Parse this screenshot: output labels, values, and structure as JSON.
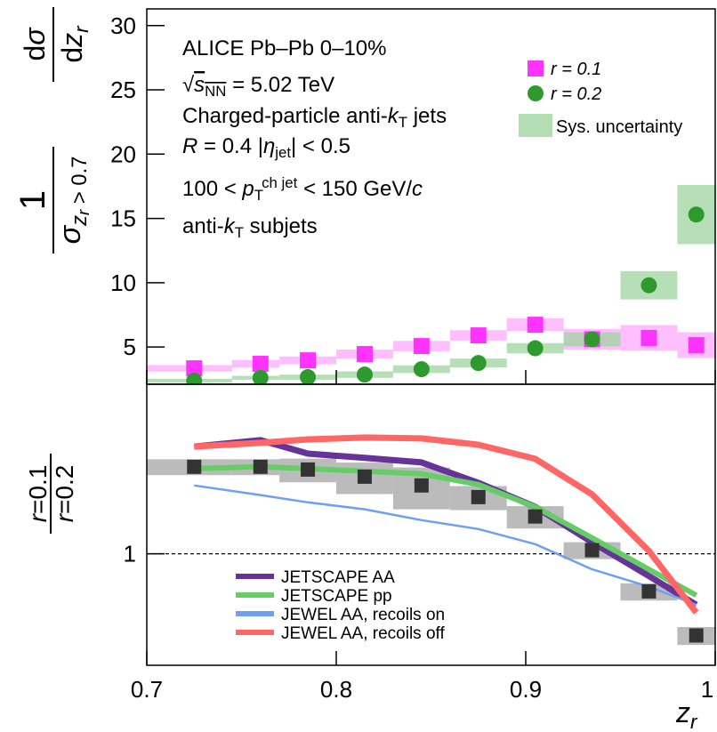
{
  "chart_data": [
    {
      "type": "scatter",
      "ylabel": {
        "num1": [
          {
            "t": "1",
            "s": ""
          }
        ],
        "den1": [
          {
            "t": "σ",
            "s": "i"
          },
          {
            "t": "z",
            "s": "sub i"
          },
          {
            "t": "r",
            "s": "ssub i"
          },
          {
            "t": " > 0.7",
            "s": "sub"
          }
        ],
        "num2": [
          {
            "t": "d",
            "s": ""
          },
          {
            "t": "σ",
            "s": "i"
          }
        ],
        "den2": [
          {
            "t": "d",
            "s": ""
          },
          {
            "t": "z",
            "s": "i"
          },
          {
            "t": "r",
            "s": "sub i"
          }
        ]
      },
      "annotations": [
        [
          {
            "t": "ALICE   Pb–Pb 0–10%",
            "s": ""
          }
        ],
        [
          {
            "t": "√",
            "s": ""
          },
          {
            "t": "s",
            "s": "i over"
          },
          {
            "t": "NN",
            "s": "sub over"
          },
          {
            "t": " = 5.02 TeV",
            "s": ""
          }
        ],
        [
          {
            "t": "Charged-particle anti-",
            "s": ""
          },
          {
            "t": "k",
            "s": "i"
          },
          {
            "t": "T",
            "s": "sub"
          },
          {
            "t": " jets",
            "s": ""
          }
        ],
        [
          {
            "t": "R",
            "s": "i"
          },
          {
            "t": " = 0.4   |",
            "s": ""
          },
          {
            "t": "η",
            "s": "i"
          },
          {
            "t": "jet",
            "s": "sub"
          },
          {
            "t": "| < 0.5",
            "s": ""
          }
        ],
        [
          {
            "t": "100 < ",
            "s": ""
          },
          {
            "t": "p",
            "s": "i"
          },
          {
            "t": "T",
            "s": "sub"
          },
          {
            "t": "ch jet",
            "s": "sup"
          },
          {
            "t": " < 150 GeV/",
            "s": ""
          },
          {
            "t": "c",
            "s": "i"
          }
        ],
        [
          {
            "t": "anti-",
            "s": ""
          },
          {
            "t": "k",
            "s": "i"
          },
          {
            "t": "T",
            "s": "sub"
          },
          {
            "t": " subjets",
            "s": ""
          }
        ]
      ],
      "xlim": [
        0.7,
        1.0
      ],
      "ylim": [
        2.1,
        31.3
      ],
      "yticks": [
        5,
        10,
        15,
        20,
        25,
        30
      ],
      "bins": [
        0.7,
        0.745,
        0.77,
        0.8,
        0.83,
        0.86,
        0.89,
        0.92,
        0.95,
        0.98,
        1.0
      ],
      "x": [
        0.725,
        0.76,
        0.785,
        0.815,
        0.845,
        0.875,
        0.905,
        0.935,
        0.965,
        0.99
      ],
      "legend": "upper right",
      "series": [
        {
          "name": "r = 0.1",
          "color": "#ff33ff",
          "band_color": "#ffaaff",
          "marker": "square",
          "values": [
            3.34,
            3.69,
            3.96,
            4.45,
            5.07,
            5.9,
            6.73,
            5.6,
            5.7,
            5.14
          ],
          "errors": [
            0.25,
            0.3,
            0.3,
            0.35,
            0.4,
            0.4,
            0.5,
            0.8,
            1.0,
            1.0
          ]
        },
        {
          "name": "r = 0.2",
          "color": "#2e9a2e",
          "band_color": "#9fd49f",
          "marker": "circle",
          "values": [
            2.37,
            2.6,
            2.65,
            2.85,
            3.27,
            3.75,
            4.9,
            5.6,
            9.8,
            15.3
          ],
          "errors": [
            0.15,
            0.15,
            0.2,
            0.25,
            0.3,
            0.35,
            0.4,
            0.55,
            1.1,
            2.3
          ]
        }
      ],
      "sys_legend": {
        "name": "Sys. uncertainty",
        "color": "#b3deb3"
      }
    },
    {
      "type": "ratio",
      "ylabel": {
        "num": [
          {
            "t": "r",
            "s": "i"
          },
          {
            "t": "=0.1",
            "s": ""
          }
        ],
        "den": [
          {
            "t": "r",
            "s": "i"
          },
          {
            "t": "=0.2",
            "s": ""
          }
        ]
      },
      "xlabel": [
        {
          "t": "z",
          "s": "i"
        },
        {
          "t": "r",
          "s": "sub i"
        }
      ],
      "xlim": [
        0.7,
        1.0
      ],
      "xticks": [
        0.7,
        0.8,
        0.9,
        {
          "value": 1.0,
          "label": "1"
        }
      ],
      "ylim": [
        0.22,
        10
      ],
      "log_y": true,
      "yticks": [
        1
      ],
      "reference_line": 1,
      "bins": [
        0.7,
        0.745,
        0.77,
        0.8,
        0.83,
        0.86,
        0.89,
        0.92,
        0.95,
        0.98,
        1.0
      ],
      "x": [
        0.725,
        0.76,
        0.785,
        0.815,
        0.845,
        0.875,
        0.905,
        0.935,
        0.965,
        0.99
      ],
      "values": [
        3.26,
        3.26,
        3.14,
        2.85,
        2.53,
        2.16,
        1.66,
        1.05,
        0.6,
        0.33
      ],
      "errors": [
        0.35,
        0.35,
        0.5,
        0.6,
        0.7,
        0.35,
        0.25,
        0.12,
        0.07,
        0.04
      ],
      "color": "#333333",
      "band_color": "#bbbbbb",
      "series": [
        {
          "name": "JETSCAPE AA",
          "color": "#663399",
          "values": [
            4.29,
            4.68,
            3.9,
            3.68,
            3.46,
            2.62,
            1.89,
            1.17,
            0.74,
            0.5
          ]
        },
        {
          "name": "JETSCAPE pp",
          "color": "#66cc66",
          "values": [
            3.18,
            3.26,
            3.18,
            3.07,
            2.96,
            2.56,
            1.89,
            1.24,
            0.81,
            0.57
          ]
        },
        {
          "name": "JEWEL AA, recoils on",
          "color": "#6f9ff0",
          "values": [
            2.53,
            2.22,
            2.01,
            1.83,
            1.58,
            1.4,
            1.14,
            0.81,
            0.64,
            0.5
          ]
        },
        {
          "name": "JEWEL AA, recoils off",
          "color": "#ff6666",
          "values": [
            4.29,
            4.51,
            4.73,
            4.85,
            4.79,
            4.4,
            3.63,
            2.24,
            1.04,
            0.45
          ]
        }
      ]
    }
  ]
}
